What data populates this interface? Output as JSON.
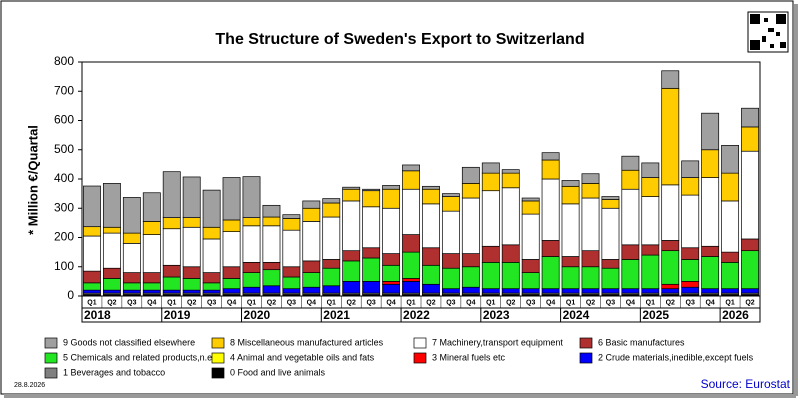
{
  "chart_data": {
    "type": "stacked_bar",
    "title": "The Structure of Sweden's Export to Switzerland",
    "y_label": "* Million €/Quartal",
    "date_note": "28.8.2026",
    "source": "Source: Eurostat",
    "categories": [
      "Q1",
      "Q2",
      "Q3",
      "Q4",
      "Q1",
      "Q2",
      "Q3",
      "Q4",
      "Q1",
      "Q2",
      "Q3",
      "Q4",
      "Q1",
      "Q2",
      "Q3",
      "Q4",
      "Q1",
      "Q2",
      "Q3",
      "Q4",
      "Q1",
      "Q2",
      "Q3",
      "Q4",
      "Q1",
      "Q2",
      "Q3",
      "Q4",
      "Q1",
      "Q2",
      "Q3",
      "Q4",
      "Q1",
      "Q2"
    ],
    "years": [
      "2018",
      "2019",
      "2020",
      "2021",
      "2022",
      "2023",
      "2024",
      "2025",
      "2026"
    ],
    "ylim": [
      0,
      800
    ],
    "yticks": [
      0,
      100,
      200,
      300,
      400,
      500,
      600,
      700,
      800
    ],
    "series": [
      {
        "name": "0 Food and live animals",
        "color": "#000000",
        "values": [
          5,
          5,
          5,
          5,
          5,
          5,
          5,
          5,
          5,
          5,
          5,
          5,
          5,
          5,
          5,
          5,
          5,
          5,
          5,
          5,
          5,
          5,
          5,
          5,
          5,
          5,
          5,
          5,
          5,
          5,
          5,
          5,
          5,
          5
        ]
      },
      {
        "name": "1 Beverages and tobacco",
        "color": "#808080",
        "values": [
          5,
          5,
          5,
          5,
          5,
          5,
          5,
          5,
          5,
          5,
          5,
          5,
          5,
          5,
          5,
          5,
          5,
          5,
          5,
          5,
          5,
          5,
          5,
          5,
          5,
          5,
          5,
          5,
          5,
          5,
          5,
          5,
          5,
          5
        ]
      },
      {
        "name": "2 Crude materials,inedible,except fuels",
        "color": "#0000ff",
        "values": [
          10,
          10,
          10,
          10,
          10,
          10,
          10,
          15,
          20,
          25,
          15,
          20,
          25,
          40,
          40,
          30,
          40,
          30,
          15,
          20,
          15,
          15,
          15,
          15,
          15,
          15,
          15,
          15,
          15,
          15,
          20,
          15,
          15,
          15
        ]
      },
      {
        "name": "3 Mineral fuels etc",
        "color": "#ff0000",
        "values": [
          0,
          0,
          0,
          0,
          0,
          0,
          0,
          0,
          0,
          0,
          0,
          0,
          0,
          0,
          0,
          10,
          10,
          0,
          0,
          0,
          0,
          0,
          0,
          0,
          0,
          0,
          0,
          0,
          0,
          15,
          20,
          0,
          0,
          0
        ]
      },
      {
        "name": "4 Animal and vegetable oils and fats",
        "color": "#ffff00",
        "values": [
          0,
          0,
          0,
          0,
          0,
          0,
          0,
          0,
          0,
          0,
          0,
          0,
          0,
          0,
          0,
          0,
          0,
          0,
          0,
          0,
          0,
          0,
          0,
          0,
          0,
          0,
          0,
          0,
          0,
          0,
          0,
          0,
          0,
          0
        ]
      },
      {
        "name": "5 Chemicals and related products,n.e.s.",
        "color": "#22e622",
        "values": [
          25,
          40,
          25,
          25,
          45,
          40,
          25,
          35,
          50,
          55,
          40,
          50,
          60,
          70,
          80,
          55,
          90,
          65,
          70,
          70,
          90,
          90,
          55,
          110,
          75,
          75,
          70,
          100,
          115,
          115,
          75,
          110,
          90,
          130
        ]
      },
      {
        "name": "6 Basic manufactures",
        "color": "#b03030",
        "values": [
          40,
          35,
          35,
          35,
          40,
          40,
          35,
          40,
          35,
          25,
          35,
          40,
          30,
          35,
          35,
          40,
          60,
          60,
          50,
          45,
          55,
          60,
          45,
          55,
          35,
          55,
          30,
          50,
          35,
          35,
          40,
          35,
          35,
          40
        ]
      },
      {
        "name": "7 Machinery,transport equipment",
        "color": "#ffffff",
        "values": [
          120,
          120,
          100,
          130,
          125,
          135,
          115,
          120,
          125,
          125,
          125,
          135,
          145,
          170,
          140,
          155,
          155,
          150,
          145,
          190,
          190,
          195,
          155,
          210,
          180,
          180,
          175,
          190,
          165,
          190,
          180,
          235,
          175,
          300
        ]
      },
      {
        "name": "8 Miscellaneous manufactured articles",
        "color": "#ffcc00",
        "values": [
          32,
          20,
          35,
          45,
          38,
          33,
          40,
          40,
          28,
          30,
          40,
          45,
          48,
          40,
          55,
          65,
          63,
          50,
          50,
          50,
          60,
          50,
          45,
          65,
          60,
          50,
          30,
          65,
          65,
          330,
          60,
          95,
          95,
          83
        ]
      },
      {
        "name": "9 Goods not classified elsewhere",
        "color": "#a0a0a0",
        "values": [
          139,
          150,
          122,
          98,
          157,
          139,
          127,
          145,
          140,
          40,
          13,
          25,
          15,
          7,
          5,
          13,
          20,
          10,
          10,
          55,
          35,
          12,
          10,
          25,
          20,
          33,
          10,
          48,
          50,
          60,
          57,
          125,
          95,
          64
        ]
      }
    ]
  }
}
